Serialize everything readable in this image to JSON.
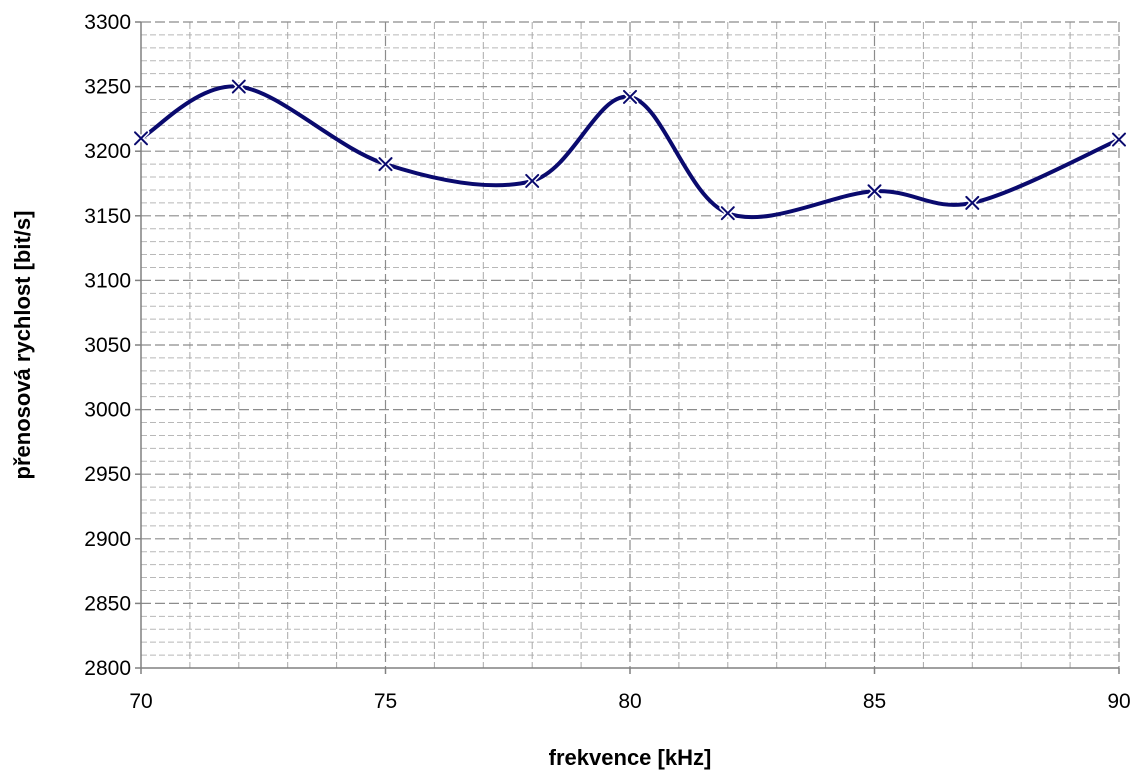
{
  "chart_data": {
    "type": "line",
    "title": "",
    "xlabel": "frekvence [kHz]",
    "ylabel": "přenosová rychlost [bit/s]",
    "xlim": [
      70,
      90
    ],
    "ylim": [
      2800,
      3300
    ],
    "x_ticks": [
      70,
      75,
      80,
      85,
      90
    ],
    "y_ticks": [
      2800,
      2850,
      2900,
      2950,
      3000,
      3050,
      3100,
      3150,
      3200,
      3250,
      3300
    ],
    "x_minor_step": 1,
    "y_minor_step": 10,
    "grid": true,
    "legend": "none",
    "smooth": true,
    "marker": "x",
    "series": [
      {
        "color": "#0a0a6e",
        "points": [
          {
            "x": 70,
            "y": 3210
          },
          {
            "x": 72,
            "y": 3250
          },
          {
            "x": 75,
            "y": 3190
          },
          {
            "x": 78,
            "y": 3177
          },
          {
            "x": 80,
            "y": 3242
          },
          {
            "x": 82,
            "y": 3152
          },
          {
            "x": 85,
            "y": 3169
          },
          {
            "x": 87,
            "y": 3160
          },
          {
            "x": 90,
            "y": 3209
          }
        ]
      }
    ]
  }
}
